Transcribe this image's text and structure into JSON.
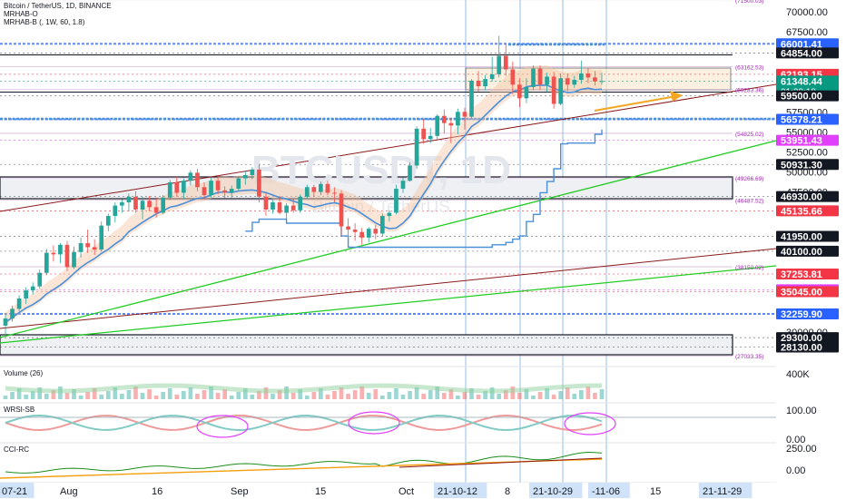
{
  "header": {
    "symbol_line": "Bitcoin / TetherUS, 1D, BINANCE",
    "indicator_1": "MRHAB-O",
    "indicator_2": "MRHAB-B (, 1W, 60, 1.8)"
  },
  "watermark": {
    "ticker": "BTCUSDT, 1D",
    "name": "Bitcoin / TetherUS"
  },
  "panes": {
    "volume_label": "Volume (26)",
    "wrsi_label": "WRSI-SB",
    "cci_label": "CCI-RC"
  },
  "chart_data": {
    "type": "candlestick",
    "price_axis": {
      "scale": "linear",
      "tick_labels": [
        "70000.00",
        "67500.00",
        "57500.00",
        "55000.00",
        "52500.00",
        "50000.00",
        "47500.00",
        "30000.00"
      ],
      "ticks": [
        70000,
        67500,
        57500,
        55000,
        52500,
        50000,
        47500,
        30000
      ]
    },
    "price_labels": [
      {
        "text": "66001.41",
        "value": 66001.41,
        "style": "blue"
      },
      {
        "text": "64854.00",
        "value": 64854.0,
        "style": "dark"
      },
      {
        "text": "62193.15",
        "value": 62193.15,
        "style": "red"
      },
      {
        "text": "61348.44",
        "value": 61348.44,
        "style": "teal",
        "sub": "01:28:18"
      },
      {
        "text": "59500.00",
        "value": 59500.0,
        "style": "dark"
      },
      {
        "text": "56578.21",
        "value": 56578.21,
        "style": "blue"
      },
      {
        "text": "53951.43",
        "value": 53951.43,
        "style": "magenta"
      },
      {
        "text": "50931.30",
        "value": 50931.3,
        "style": "dark"
      },
      {
        "text": "46930.00",
        "value": 46930.0,
        "style": "dark"
      },
      {
        "text": "45135.66",
        "value": 45135.66,
        "style": "red"
      },
      {
        "text": "41950.00",
        "value": 41950.0,
        "style": "dark"
      },
      {
        "text": "40100.00",
        "value": 40100.0,
        "style": "dark"
      },
      {
        "text": "37253.81",
        "value": 37253.81,
        "style": "red"
      },
      {
        "text": "35286.51",
        "value": 35286.51,
        "style": "magenta"
      },
      {
        "text": "35045.00",
        "value": 35045.0,
        "style": "red"
      },
      {
        "text": "32259.90",
        "value": 32259.9,
        "style": "blue"
      },
      {
        "text": "29300.00",
        "value": 29300.0,
        "style": "dark"
      },
      {
        "text": "28130.00",
        "value": 28130.0,
        "style": "dark"
      }
    ],
    "level_annotations": [
      {
        "text": "(71500.03)",
        "value": 71500.03
      },
      {
        "text": "(63162.53)",
        "value": 63162.53
      },
      {
        "text": "(60283.36)",
        "value": 60283.36
      },
      {
        "text": "(54825.02)",
        "value": 54825.02
      },
      {
        "text": "(49266.69)",
        "value": 49266.69
      },
      {
        "text": "(46487.52)",
        "value": 46487.52
      },
      {
        "text": "(38150.02)",
        "value": 38150.02
      },
      {
        "text": "(27033.35)",
        "value": 27033.35
      }
    ],
    "time_axis": {
      "labels": [
        "07-21",
        "Aug",
        "16",
        "Sep",
        "15",
        "Oct",
        "21-10-12",
        "8",
        "21-10-29",
        "-11-06",
        "15",
        "21-11-29"
      ],
      "highlighted": [
        "07-21",
        "21-10-12",
        "21-10-29",
        "-11-06",
        "21-11-29"
      ]
    },
    "ohlc": [
      [
        30800,
        32200,
        29600,
        31700
      ],
      [
        31700,
        33300,
        31300,
        32900
      ],
      [
        32900,
        34600,
        32600,
        34200
      ],
      [
        34200,
        35600,
        33500,
        35200
      ],
      [
        35200,
        36200,
        34700,
        35700
      ],
      [
        35700,
        37800,
        35400,
        37400
      ],
      [
        37400,
        40400,
        37100,
        39900
      ],
      [
        39900,
        40800,
        38800,
        39700
      ],
      [
        39700,
        41100,
        38600,
        40900
      ],
      [
        40900,
        41400,
        37600,
        38100
      ],
      [
        38100,
        40700,
        37900,
        40000
      ],
      [
        40000,
        41800,
        39300,
        41100
      ],
      [
        41100,
        42800,
        39900,
        40600
      ],
      [
        40600,
        41600,
        39600,
        40300
      ],
      [
        40300,
        43800,
        40100,
        43300
      ],
      [
        43300,
        44800,
        42600,
        44500
      ],
      [
        44500,
        46200,
        43700,
        45800
      ],
      [
        45800,
        46600,
        44900,
        46200
      ],
      [
        46200,
        47300,
        45100,
        46900
      ],
      [
        46900,
        47600,
        44900,
        45300
      ],
      [
        45300,
        46900,
        44100,
        46400
      ],
      [
        46400,
        47000,
        45100,
        45600
      ],
      [
        45600,
        46800,
        44300,
        44900
      ],
      [
        44900,
        47100,
        44700,
        46800
      ],
      [
        46800,
        49000,
        46500,
        48700
      ],
      [
        48700,
        49400,
        46900,
        47400
      ],
      [
        47400,
        49200,
        46600,
        48900
      ],
      [
        48900,
        50200,
        48300,
        49900
      ],
      [
        49900,
        50400,
        47600,
        48100
      ],
      [
        48100,
        48700,
        46600,
        47100
      ],
      [
        47100,
        49300,
        46800,
        48900
      ],
      [
        48900,
        49600,
        47200,
        47700
      ],
      [
        47700,
        48200,
        46700,
        47400
      ],
      [
        47400,
        48300,
        46800,
        47900
      ],
      [
        47900,
        49300,
        47700,
        49200
      ],
      [
        49200,
        50100,
        48400,
        49600
      ],
      [
        49600,
        50600,
        49100,
        50300
      ],
      [
        50300,
        51000,
        46200,
        46900
      ],
      [
        46900,
        47400,
        44500,
        45300
      ],
      [
        45300,
        46500,
        44800,
        46200
      ],
      [
        46200,
        47000,
        44700,
        44900
      ],
      [
        44900,
        46100,
        43600,
        45800
      ],
      [
        45800,
        46600,
        44900,
        45200
      ],
      [
        45200,
        47200,
        44900,
        46900
      ],
      [
        46900,
        48400,
        46600,
        48100
      ],
      [
        48100,
        48400,
        46900,
        47500
      ],
      [
        47500,
        48800,
        47100,
        48500
      ],
      [
        48500,
        48900,
        47100,
        47400
      ],
      [
        47400,
        48100,
        46200,
        47300
      ],
      [
        47300,
        47700,
        42000,
        43200
      ],
      [
        43200,
        44200,
        40600,
        42800
      ],
      [
        42800,
        43600,
        41400,
        42500
      ],
      [
        42500,
        43000,
        40900,
        41800
      ],
      [
        41800,
        43100,
        41200,
        42900
      ],
      [
        42900,
        43400,
        41600,
        42300
      ],
      [
        42300,
        44800,
        42000,
        44500
      ],
      [
        44500,
        45200,
        43800,
        44900
      ],
      [
        44900,
        48400,
        44700,
        47900
      ],
      [
        47900,
        49300,
        47400,
        48900
      ],
      [
        48900,
        51200,
        48800,
        50800
      ],
      [
        50800,
        55700,
        50400,
        55400
      ],
      [
        55400,
        56600,
        53500,
        54100
      ],
      [
        54100,
        55500,
        53600,
        54500
      ],
      [
        54500,
        57200,
        54100,
        57000
      ],
      [
        57000,
        57800,
        54800,
        56100
      ],
      [
        56100,
        56700,
        53600,
        55800
      ],
      [
        55800,
        57900,
        54700,
        57500
      ],
      [
        57500,
        58000,
        55300,
        56900
      ],
      [
        56900,
        61600,
        56700,
        61400
      ],
      [
        61400,
        62600,
        60000,
        60700
      ],
      [
        60700,
        62100,
        60200,
        61600
      ],
      [
        61600,
        64400,
        61300,
        62200
      ],
      [
        62200,
        67000,
        61800,
        64500
      ],
      [
        64500,
        66000,
        62000,
        62800
      ],
      [
        62800,
        63800,
        59700,
        60900
      ],
      [
        60900,
        61700,
        58100,
        59200
      ],
      [
        59200,
        61700,
        58600,
        60600
      ],
      [
        60600,
        63300,
        60200,
        62900
      ],
      [
        62900,
        63300,
        60200,
        60900
      ],
      [
        60900,
        62400,
        60000,
        61900
      ],
      [
        61900,
        62500,
        57900,
        58500
      ],
      [
        58500,
        62300,
        58300,
        61700
      ],
      [
        61700,
        62300,
        60100,
        60900
      ],
      [
        60900,
        62000,
        60500,
        61500
      ],
      [
        61500,
        63900,
        61000,
        62300
      ],
      [
        62300,
        63000,
        61100,
        61800
      ],
      [
        61800,
        62600,
        60800,
        61300
      ],
      [
        61300,
        62400,
        60900,
        61348
      ]
    ],
    "volume_axis": {
      "tick_labels": [
        "400K"
      ]
    },
    "wrsi_axis": {
      "tick_labels": [
        "100.00",
        "0.00"
      ]
    },
    "cci_axis": {
      "tick_labels": [
        "250.00",
        "0.00"
      ]
    }
  }
}
